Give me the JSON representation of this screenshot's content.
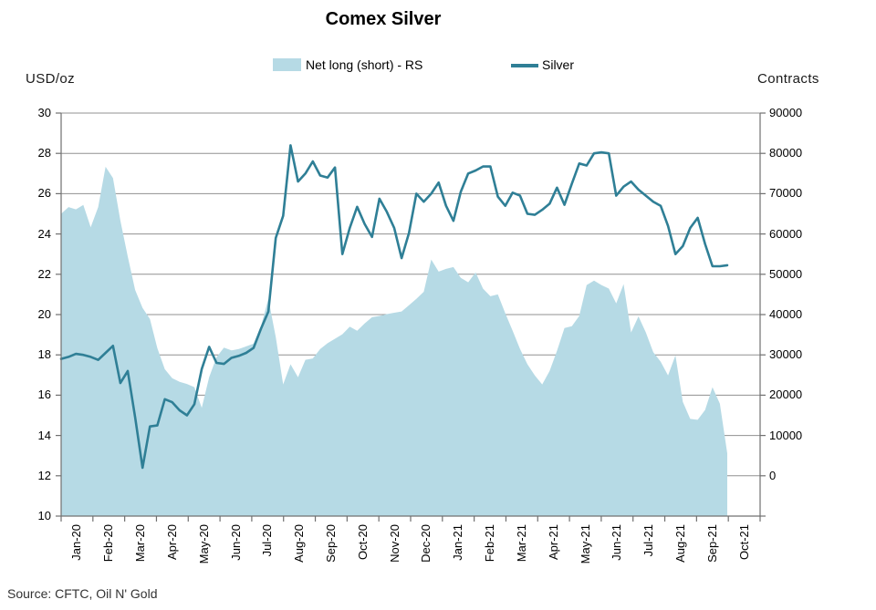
{
  "title": "Comex Silver",
  "legend": {
    "area_label": "Net long (short) - RS",
    "line_label": "Silver"
  },
  "left_axis": {
    "title": "USD/oz",
    "min": 10,
    "max": 30,
    "ticks": [
      30,
      28,
      26,
      24,
      22,
      20,
      18,
      16,
      14,
      12,
      10
    ]
  },
  "right_axis": {
    "title": "Contracts",
    "min": 0,
    "max": 90000,
    "ticks": [
      90000,
      80000,
      70000,
      60000,
      50000,
      40000,
      30000,
      20000,
      10000,
      0
    ]
  },
  "source": "Source: CFTC, Oil N' Gold",
  "colors": {
    "area": "#b6dae5",
    "line": "#2f7f96",
    "grid": "#909090",
    "axis": "#707070",
    "text": "#000000"
  },
  "chart_data": {
    "type": "area+line",
    "x_unit": "weekly points, Jan-2020 to Sep-2021",
    "x_labels": [
      "Jan-20",
      "Feb-20",
      "Mar-20",
      "Apr-20",
      "May-20",
      "Jun-20",
      "Jul-20",
      "Aug-20",
      "Sep-20",
      "Oct-20",
      "Nov-20",
      "Dec-20",
      "Jan-21",
      "Feb-21",
      "Mar-21",
      "Apr-21",
      "May-21",
      "Jun-21",
      "Jul-21",
      "Aug-21",
      "Sep-21",
      "Oct-21"
    ],
    "grid": true,
    "legend_position": "top",
    "series": [
      {
        "name": "Net long (short) - RS",
        "type": "area",
        "axis": "right",
        "values": [
          67500,
          69000,
          68500,
          69500,
          64500,
          69000,
          78000,
          75500,
          66000,
          58000,
          50500,
          46500,
          44000,
          37500,
          32800,
          30800,
          30000,
          29500,
          28800,
          24200,
          31000,
          35500,
          37600,
          37000,
          37300,
          37900,
          38500,
          42400,
          48500,
          40000,
          29400,
          33900,
          31000,
          34900,
          35200,
          37300,
          38600,
          39600,
          40600,
          42300,
          41400,
          43000,
          44400,
          44700,
          45100,
          45400,
          45700,
          47100,
          48500,
          50100,
          57300,
          54600,
          55200,
          55600,
          53200,
          52200,
          54400,
          50800,
          49100,
          49500,
          45300,
          41400,
          37300,
          33900,
          31400,
          29400,
          32400,
          36900,
          42000,
          42400,
          44700,
          51600,
          52600,
          51600,
          50800,
          47500,
          51800,
          41000,
          44600,
          41000,
          36600,
          34500,
          31400,
          35900,
          25500,
          21700,
          21500,
          23700,
          28800,
          25100,
          14000
        ]
      },
      {
        "name": "Silver",
        "type": "line",
        "axis": "left",
        "values": [
          17.8,
          17.9,
          18.05,
          18.0,
          17.9,
          17.75,
          18.1,
          18.45,
          16.6,
          17.2,
          14.9,
          12.4,
          14.45,
          14.5,
          15.8,
          15.65,
          15.25,
          15.0,
          15.55,
          17.3,
          18.4,
          17.6,
          17.55,
          17.85,
          17.95,
          18.1,
          18.35,
          19.3,
          20.15,
          23.8,
          24.9,
          28.4,
          26.6,
          27.0,
          27.6,
          26.9,
          26.8,
          27.3,
          23.0,
          24.3,
          25.35,
          24.5,
          23.85,
          25.75,
          25.1,
          24.3,
          22.8,
          24.05,
          26.0,
          25.6,
          26.0,
          26.55,
          25.4,
          24.65,
          26.1,
          27.0,
          27.15,
          27.35,
          27.35,
          25.85,
          25.4,
          26.05,
          25.9,
          25.0,
          24.95,
          25.2,
          25.5,
          26.3,
          25.45,
          26.5,
          27.5,
          27.4,
          28.0,
          28.05,
          28.0,
          25.9,
          26.35,
          26.6,
          26.2,
          25.9,
          25.6,
          25.4,
          24.4,
          23.0,
          23.4,
          24.3,
          24.8,
          23.5,
          22.4,
          22.4,
          22.45
        ]
      }
    ]
  }
}
